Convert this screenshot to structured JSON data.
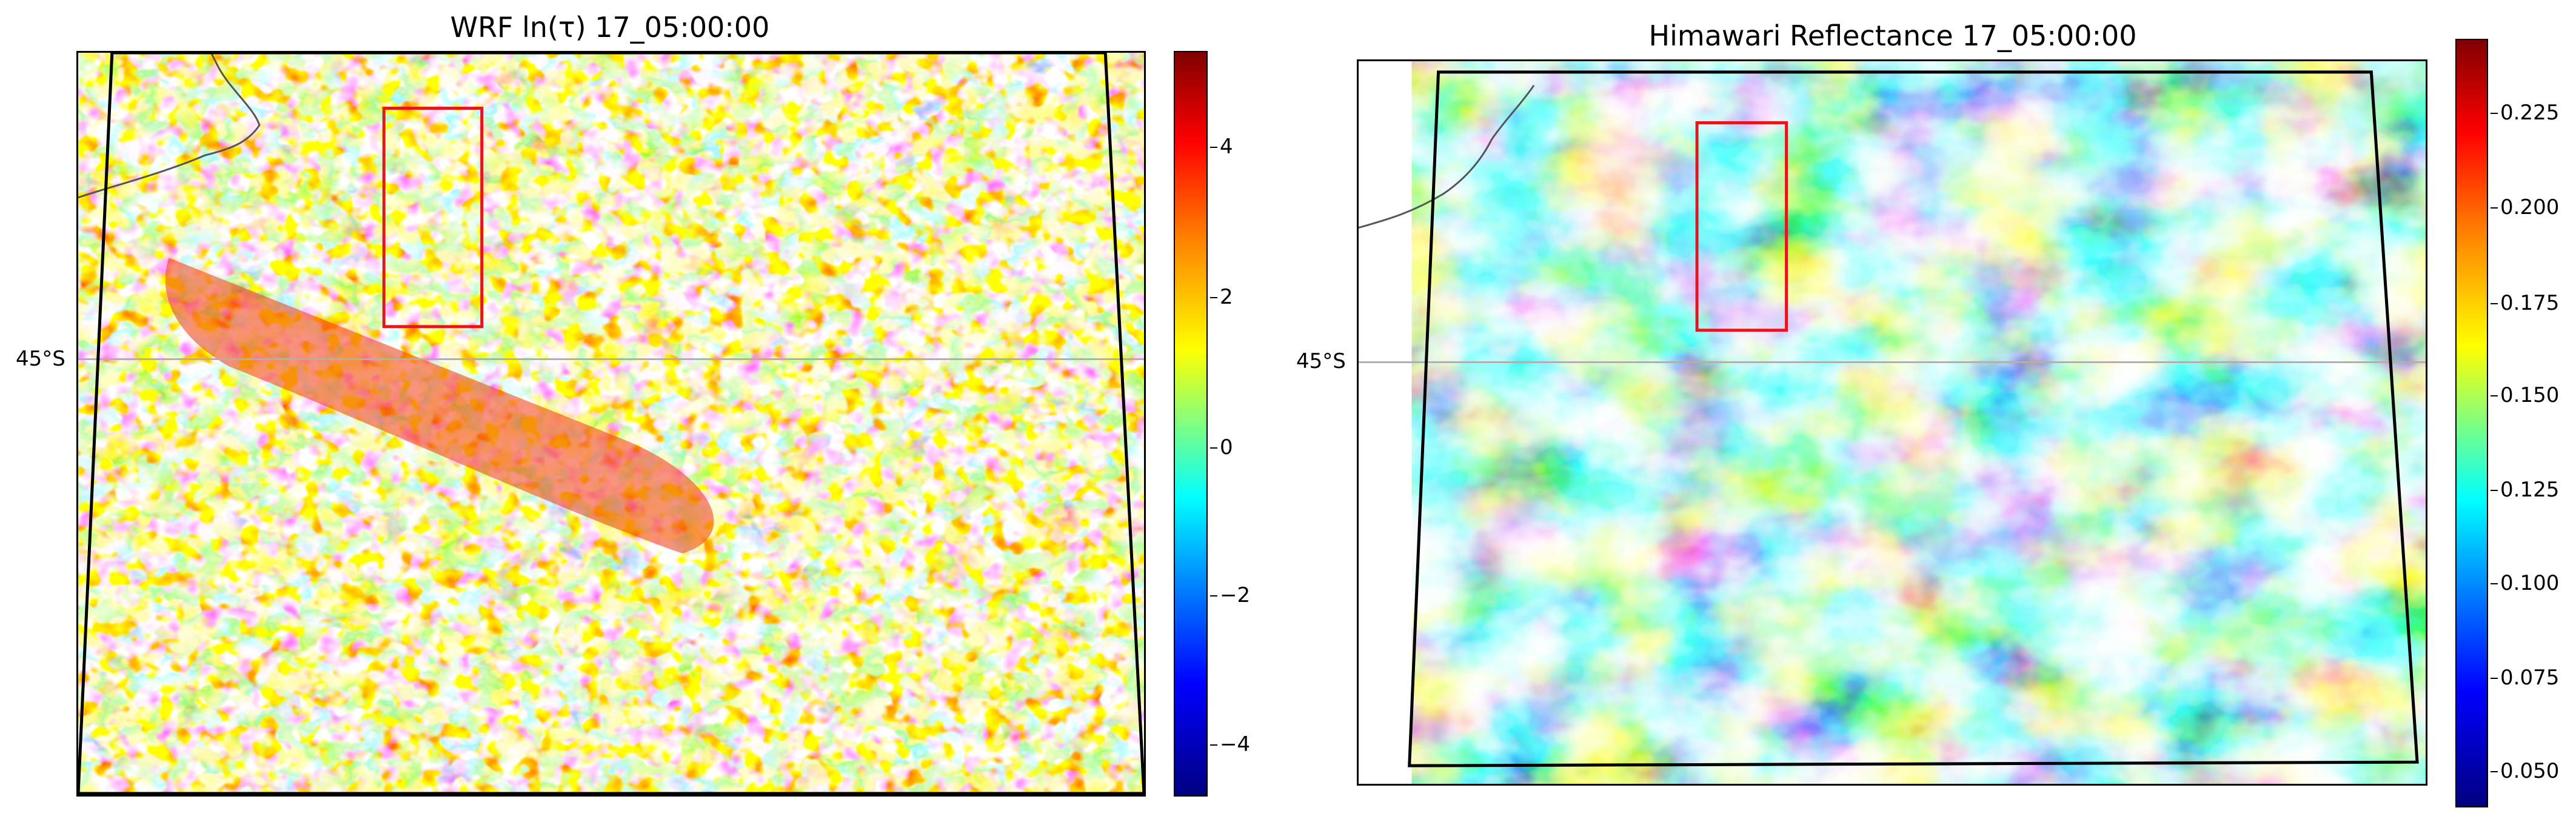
{
  "left_panel": {
    "title": "WRF ln(τ) 17_05:00:00",
    "lat_label": "45°S",
    "colorbar": {
      "colormap": "jet",
      "ticks": [
        "4",
        "2",
        "0",
        "−2",
        "−4"
      ]
    }
  },
  "right_panel": {
    "title": "Himawari Reflectance 17_05:00:00",
    "lat_label": "45°S",
    "colorbar": {
      "colormap": "jet",
      "ticks": [
        "0.225",
        "0.200",
        "0.175",
        "0.150",
        "0.125",
        "0.100",
        "0.075",
        "0.050"
      ]
    }
  },
  "colors": {
    "highlight_box": "#e8141c",
    "domain_outline": "#000000",
    "gridline": "#b0b0b0"
  }
}
